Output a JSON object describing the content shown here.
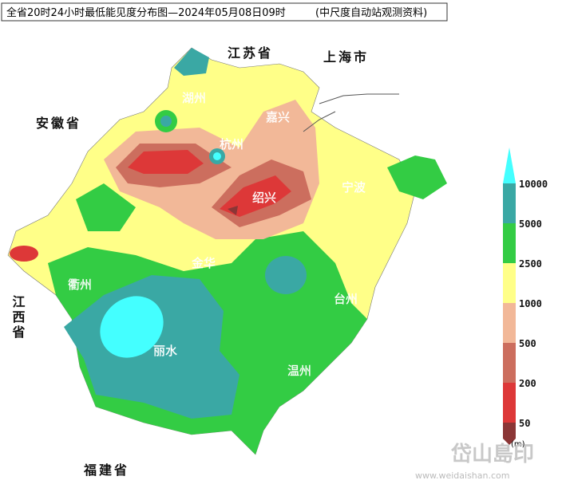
{
  "header": {
    "title": "全省20时24小时最低能见度分布图—2024年05月08日09时",
    "source": "(中尺度自动站观测资料)"
  },
  "provinces": [
    {
      "label": "江苏省"
    },
    {
      "label": "上海市"
    },
    {
      "label": "安徽省"
    },
    {
      "label": "江西省"
    },
    {
      "label": "福建省"
    }
  ],
  "cities": [
    {
      "label": "湖州"
    },
    {
      "label": "嘉兴"
    },
    {
      "label": "杭州"
    },
    {
      "label": "绍兴"
    },
    {
      "label": "宁波"
    },
    {
      "label": "金华"
    },
    {
      "label": "衢州"
    },
    {
      "label": "台州"
    },
    {
      "label": "丽水"
    },
    {
      "label": "温州"
    }
  ],
  "legend": {
    "unit": "(m)",
    "items": [
      {
        "label": 10000,
        "color": "#3aa8a4"
      },
      {
        "label": 5000,
        "color": "#33cc44"
      },
      {
        "label": 2500,
        "color": "#ffff88"
      },
      {
        "label": 1000,
        "color": "#f2b898"
      },
      {
        "label": 500,
        "color": "#cc6e5e"
      },
      {
        "label": 200,
        "color": "#dd3838"
      },
      {
        "label": 50,
        "color": "#8b3636"
      }
    ],
    "top_color": "#44ffff"
  },
  "watermark": {
    "name": "岱山島印",
    "url": "www.weidaishan.com"
  }
}
